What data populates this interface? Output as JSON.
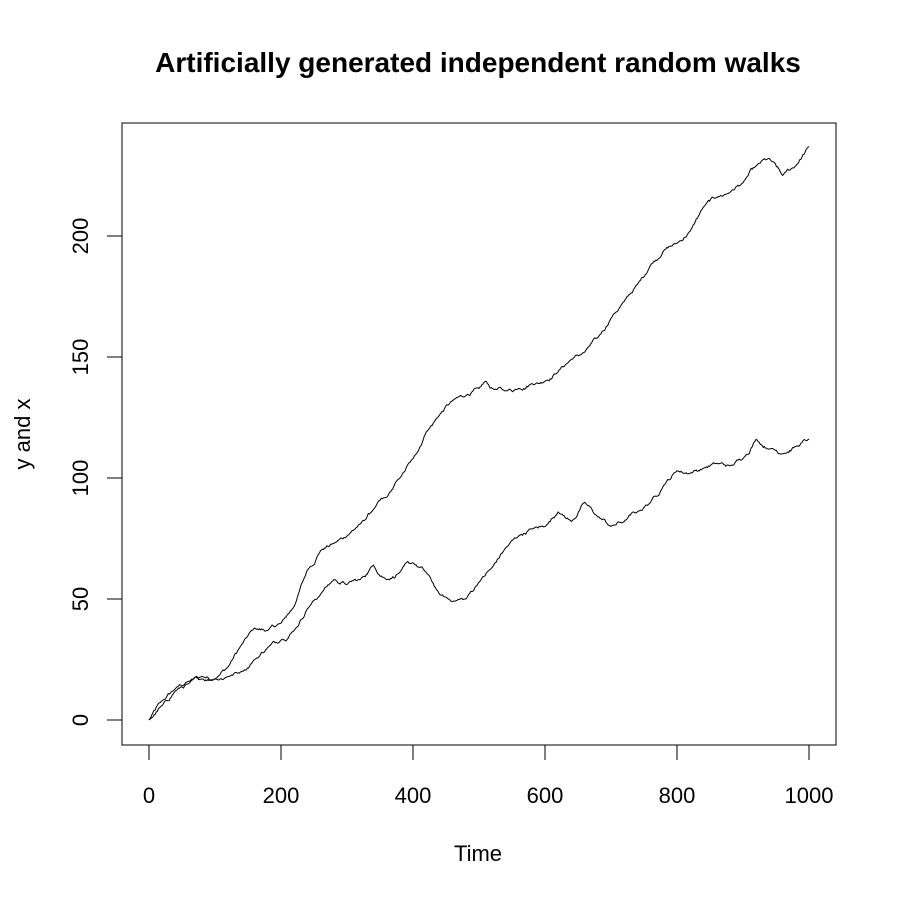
{
  "chart_data": {
    "type": "line",
    "title": "Artificially generated independent random walks",
    "xlabel": "Time",
    "ylabel": "y and x",
    "xlim": [
      0,
      1000
    ],
    "ylim": [
      0,
      237
    ],
    "x_ticks": [
      0,
      200,
      400,
      600,
      800,
      1000
    ],
    "y_ticks": [
      0,
      50,
      100,
      150,
      200
    ],
    "x_tick_labels": [
      "0",
      "200",
      "400",
      "600",
      "800",
      "1000"
    ],
    "y_tick_labels": [
      "0",
      "50",
      "100",
      "150",
      "200"
    ],
    "grid": false,
    "line_color": "#000000",
    "series": [
      {
        "x": [
          0,
          20,
          40,
          60,
          80,
          100,
          120,
          140,
          160,
          180,
          200,
          220,
          240,
          260,
          280,
          300,
          320,
          340,
          360,
          380,
          400,
          420,
          440,
          460,
          480,
          500,
          510,
          520,
          540,
          560,
          580,
          600,
          620,
          640,
          660,
          680,
          700,
          720,
          740,
          760,
          780,
          800,
          820,
          840,
          860,
          880,
          900,
          920,
          940,
          960,
          980,
          1000
        ],
        "values": [
          0,
          8,
          13,
          16,
          18,
          17,
          22,
          31,
          38,
          37,
          40,
          47,
          62,
          70,
          73,
          76,
          81,
          87,
          92,
          100,
          108,
          119,
          126,
          132,
          134,
          137,
          140,
          137,
          136,
          137,
          139,
          140,
          144,
          149,
          152,
          158,
          166,
          173,
          180,
          188,
          194,
          197,
          202,
          212,
          216,
          218,
          222,
          229,
          232,
          225,
          229,
          237
        ]
      },
      {
        "x": [
          0,
          20,
          40,
          60,
          80,
          100,
          120,
          140,
          160,
          180,
          200,
          220,
          240,
          260,
          280,
          300,
          320,
          340,
          360,
          380,
          400,
          420,
          440,
          460,
          480,
          500,
          520,
          540,
          560,
          580,
          600,
          620,
          640,
          660,
          680,
          700,
          720,
          740,
          760,
          780,
          800,
          820,
          840,
          860,
          880,
          900,
          920,
          940,
          960,
          980,
          1000
        ],
        "values": [
          0,
          6,
          12,
          15,
          17,
          17,
          18,
          20,
          25,
          30,
          33,
          37,
          46,
          52,
          58,
          56,
          58,
          64,
          58,
          61,
          65,
          61,
          52,
          49,
          50,
          57,
          63,
          71,
          76,
          79,
          80,
          86,
          82,
          90,
          84,
          80,
          82,
          86,
          90,
          97,
          103,
          102,
          104,
          106,
          105,
          108,
          116,
          112,
          110,
          113,
          116
        ]
      }
    ]
  }
}
